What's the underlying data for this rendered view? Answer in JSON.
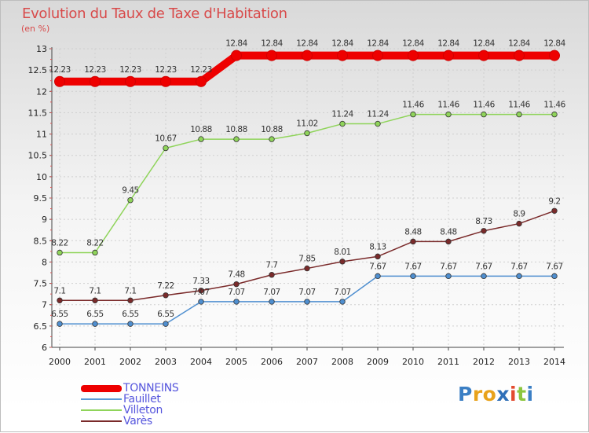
{
  "chart_data": {
    "type": "line",
    "title": "Evolution du Taux de Taxe d'Habitation",
    "subtitle": "(en %)",
    "xlabel": "",
    "ylabel": "",
    "ylim": [
      6,
      13
    ],
    "yticks": [
      "6",
      "6.5",
      "7",
      "7.5",
      "8",
      "8.5",
      "9",
      "9.5",
      "10",
      "10.5",
      "11",
      "11.5",
      "12",
      "12.5",
      "13"
    ],
    "categories": [
      "2000",
      "2001",
      "2002",
      "2003",
      "2004",
      "2005",
      "2006",
      "2007",
      "2008",
      "2009",
      "2010",
      "2011",
      "2012",
      "2013",
      "2014"
    ],
    "series": [
      {
        "name": "TONNEINS",
        "color": "#ee0000",
        "values": [
          12.23,
          12.23,
          12.23,
          12.23,
          12.23,
          12.84,
          12.84,
          12.84,
          12.84,
          12.84,
          12.84,
          12.84,
          12.84,
          12.84,
          12.84
        ],
        "labels": [
          "12.23",
          "12.23",
          "12.23",
          "12.23",
          "12.23",
          "12.84",
          "12.84",
          "12.84",
          "12.84",
          "12.84",
          "12.84",
          "12.84",
          "12.84",
          "12.84",
          "12.84"
        ]
      },
      {
        "name": "Fauillet",
        "color": "#4f8fd0",
        "values": [
          6.55,
          6.55,
          6.55,
          6.55,
          7.07,
          7.07,
          7.07,
          7.07,
          7.07,
          7.67,
          7.67,
          7.67,
          7.67,
          7.67,
          7.67
        ],
        "labels": [
          "6.55",
          "6.55",
          "6.55",
          "6.55",
          "7.07",
          "7.07",
          "7.07",
          "7.07",
          "7.07",
          "7.67",
          "7.67",
          "7.67",
          "7.67",
          "7.67",
          "7.67"
        ]
      },
      {
        "name": "Villeton",
        "color": "#8fd45a",
        "values": [
          8.22,
          8.22,
          9.45,
          10.67,
          10.88,
          10.88,
          10.88,
          11.02,
          11.24,
          11.24,
          11.46,
          11.46,
          11.46,
          11.46,
          11.46
        ],
        "labels": [
          "8.22",
          "8.22",
          "9.45",
          "10.67",
          "10.88",
          "10.88",
          "10.88",
          "11.02",
          "11.24",
          "11.24",
          "11.46",
          "11.46",
          "11.46",
          "11.46",
          "11.46"
        ]
      },
      {
        "name": "Varès",
        "color": "#7a2a2a",
        "values": [
          7.1,
          7.1,
          7.1,
          7.22,
          7.33,
          7.48,
          7.7,
          7.85,
          8.01,
          8.13,
          8.48,
          8.48,
          8.73,
          8.9,
          9.2
        ],
        "labels": [
          "7.1",
          "7.1",
          "7.1",
          "7.22",
          "7.33",
          "7.48",
          "7.7",
          "7.85",
          "8.01",
          "8.13",
          "8.48",
          "8.48",
          "8.73",
          "8.9",
          "9.2"
        ]
      }
    ],
    "grid": true,
    "legend": "bottom-left"
  },
  "legend": [
    {
      "label": "TONNEINS",
      "color": "#ee0000",
      "text_color": "#5555dd"
    },
    {
      "label": "Fauillet",
      "color": "#5a9ad6",
      "text_color": "#5555dd"
    },
    {
      "label": "Villeton",
      "color": "#8fd45a",
      "text_color": "#5555dd"
    },
    {
      "label": "Varès",
      "color": "#7a2a2a",
      "text_color": "#5555dd"
    }
  ],
  "brand": {
    "letters": [
      "P",
      "r",
      "o",
      "x",
      "i",
      "t",
      "i"
    ],
    "colors": [
      "#3b7fc4",
      "#e8a21b",
      "#e8a21b",
      "#2f6fb8",
      "#e34a2f",
      "#8cc63f",
      "#3b7fc4"
    ]
  }
}
